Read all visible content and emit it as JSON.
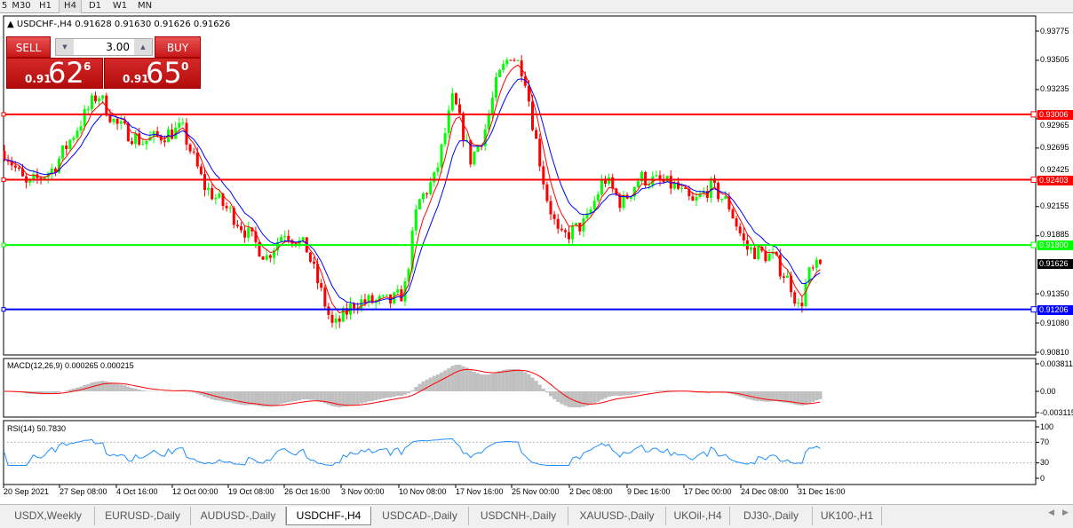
{
  "timeframes": [
    {
      "label": "5"
    },
    {
      "label": "M30"
    },
    {
      "label": "H1"
    },
    {
      "label": "H4",
      "active": true
    },
    {
      "label": "D1"
    },
    {
      "label": "W1"
    },
    {
      "label": "MN"
    }
  ],
  "chart": {
    "title": "USDCHF-,H4  0.91628 0.91630 0.91626 0.91626",
    "symbol": "USDCHF-",
    "timeframe": "H4",
    "ohlc": [
      0.91628,
      0.9163,
      0.91626,
      0.91626
    ]
  },
  "trade_panel": {
    "sell_label": "SELL",
    "buy_label": "BUY",
    "lot": "3.00",
    "sell": {
      "prefix": "0.91",
      "big": "62",
      "sup": "6"
    },
    "buy": {
      "prefix": "0.91",
      "big": "65",
      "sup": "0"
    }
  },
  "price_axis": {
    "ticks": [
      "0.93775",
      "0.93505",
      "0.93235",
      "0.92965",
      "0.92695",
      "0.92425",
      "0.92155",
      "0.91885",
      "0.91350",
      "0.91080",
      "0.90810"
    ],
    "range": [
      0.9081,
      0.93775
    ]
  },
  "levels": [
    {
      "price": "0.93006",
      "color": "#ff0000"
    },
    {
      "price": "0.92403",
      "color": "#ff0000"
    },
    {
      "price": "0.91800",
      "color": "#00ff00"
    },
    {
      "price": "0.91206",
      "color": "#0000ff"
    }
  ],
  "current_price": {
    "price": "0.91626",
    "color": "#000000"
  },
  "price_path": [
    0.92669,
    0.92342,
    0.92506,
    0.93202,
    0.92915,
    0.92751,
    0.92874,
    0.92342,
    0.92096,
    0.91687,
    0.91932,
    0.91768,
    0.91031,
    0.91277,
    0.91277,
    0.91359,
    0.92178,
    0.92424,
    0.93161,
    0.92587,
    0.92833,
    0.93325,
    0.9357,
    0.93406,
    0.92915,
    0.9226,
    0.9185,
    0.92014,
    0.92424,
    0.92178,
    0.92424,
    0.92342,
    0.92178,
    0.92342,
    0.92178,
    0.91768,
    0.91687,
    0.91441,
    0.91195,
    0.91523,
    0.91626
  ],
  "macd": {
    "label": "MACD(12,26,9) 0.000265 0.000215",
    "ticks": [
      "0.003811",
      "0.00",
      "-0.003115"
    ]
  },
  "rsi": {
    "label": "RSI(14) 50.7830",
    "ticks": [
      "100",
      "70",
      "30",
      "0"
    ],
    "levels": [
      70,
      30
    ]
  },
  "time_axis": [
    "20 Sep 2021",
    "27 Sep 08:00",
    "4 Oct 16:00",
    "12 Oct 00:00",
    "19 Oct 08:00",
    "26 Oct 16:00",
    "3 Nov 00:00",
    "10 Nov 08:00",
    "17 Nov 16:00",
    "25 Nov 00:00",
    "2 Dec 08:00",
    "9 Dec 16:00",
    "17 Dec 00:00",
    "24 Dec 08:00",
    "31 Dec 16:00"
  ],
  "tabs": [
    {
      "label": "USDX,Weekly"
    },
    {
      "label": "EURUSD-,Daily"
    },
    {
      "label": "AUDUSD-,Daily"
    },
    {
      "label": "USDCHF-,H4",
      "active": true
    },
    {
      "label": "USDCAD-,Daily"
    },
    {
      "label": "USDCNH-,Daily"
    },
    {
      "label": "XAUUSD-,Daily"
    },
    {
      "label": "UKOil-,H4"
    },
    {
      "label": "DJ30-,Daily"
    },
    {
      "label": "UK100-,H1"
    }
  ],
  "colors": {
    "bull": "#00ff00",
    "bear": "#ff0000",
    "ma_fast": "#ff0000",
    "ma_slow": "#0000ff",
    "macd_hist": "#c0c0c0",
    "macd_signal": "#ff0000",
    "rsi": "#1e90ff"
  }
}
